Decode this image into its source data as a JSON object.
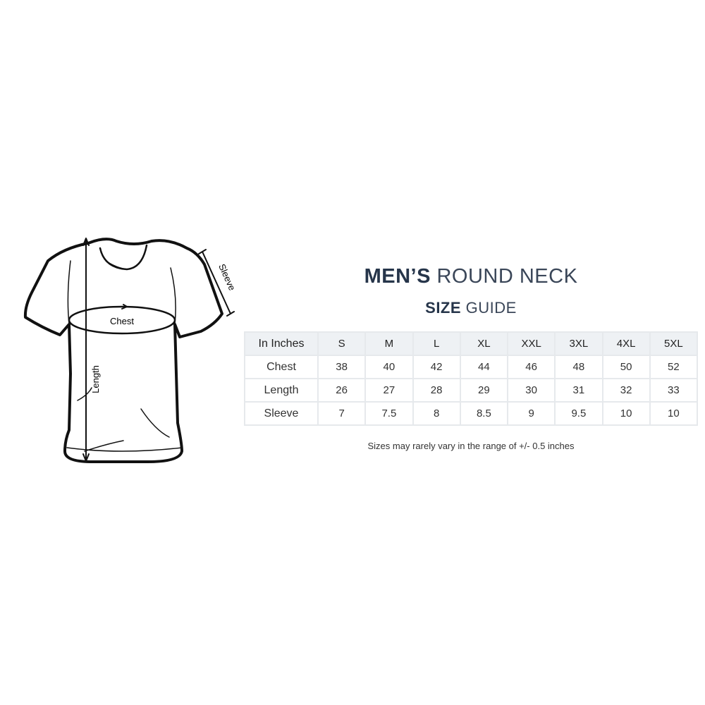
{
  "title": {
    "bold": "MEN’S",
    "light": "ROUND NECK"
  },
  "subtitle": {
    "bold": "SIZE",
    "light": "GUIDE"
  },
  "diagram_labels": {
    "chest": "Chest",
    "length": "Length",
    "sleeve": "Sleeve"
  },
  "table": {
    "headers": [
      "In Inches",
      "S",
      "M",
      "L",
      "XL",
      "XXL",
      "3XL",
      "4XL",
      "5XL"
    ],
    "rows": [
      {
        "label": "Chest",
        "values": [
          "38",
          "40",
          "42",
          "44",
          "46",
          "48",
          "50",
          "52"
        ]
      },
      {
        "label": "Length",
        "values": [
          "26",
          "27",
          "28",
          "29",
          "30",
          "31",
          "32",
          "33"
        ]
      },
      {
        "label": "Sleeve",
        "values": [
          "7",
          "7.5",
          "8",
          "8.5",
          "9",
          "9.5",
          "10",
          "10"
        ]
      }
    ]
  },
  "note": "Sizes may rarely vary in the range of +/- 0.5 inches",
  "colors": {
    "title": "#26354a",
    "header_bg": "#eef1f4",
    "border": "#e6e9ec"
  }
}
